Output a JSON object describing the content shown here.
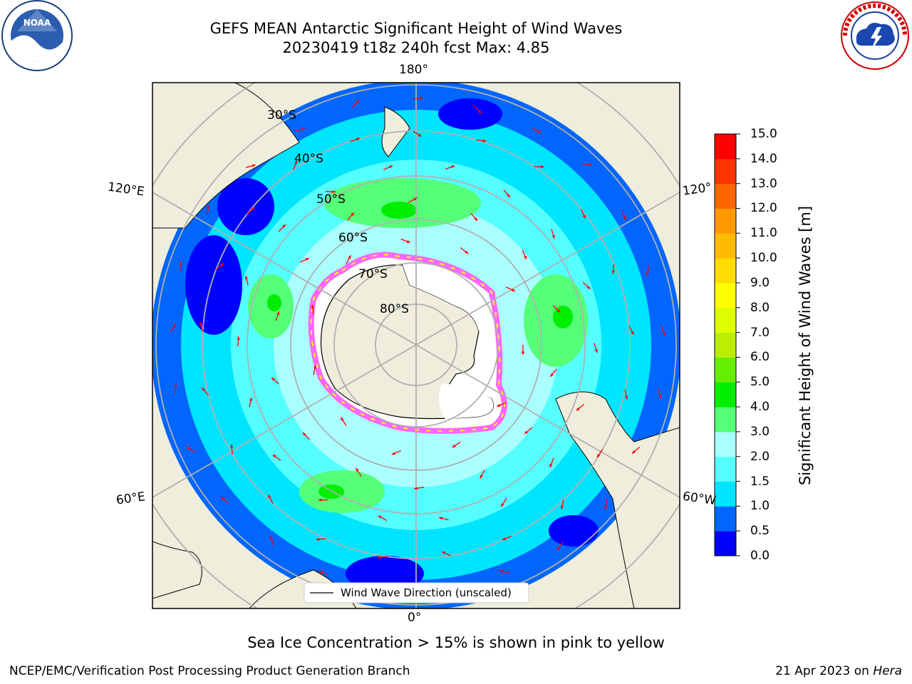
{
  "header": {
    "title_line1": "GEFS MEAN Antarctic Significant Height of Wind Waves",
    "title_line2": "20230419 t18z 240h fcst   Max: 4.85"
  },
  "map": {
    "projection": "south-polar-stereographic",
    "longitude_labels": {
      "top": "180°",
      "bottom": "0°",
      "upper_left": "120°E",
      "upper_right": "120°",
      "lower_left": "60°E",
      "lower_right": "60°W"
    },
    "latitude_labels": [
      "30°S",
      "40°S",
      "50°S",
      "60°S",
      "70°S",
      "80°S"
    ],
    "legend_label": "Wind Wave Direction (unscaled)",
    "land_color": "#efeedc",
    "arrow_color": "#ff0000",
    "sea_ice_colors": [
      "#ff66ff",
      "#ffff00"
    ]
  },
  "colorbar": {
    "label": "Significant Height of Wind Waves [m]",
    "ticks": [
      "0.0",
      "0.5",
      "1.0",
      "1.5",
      "2.0",
      "3.0",
      "4.0",
      "5.0",
      "6.0",
      "7.0",
      "8.0",
      "9.0",
      "10.0",
      "11.0",
      "12.0",
      "13.0",
      "14.0",
      "15.0"
    ],
    "colors": [
      "#0000ff",
      "#0066ff",
      "#00e5ff",
      "#55ffff",
      "#aaffff",
      "#55ff77",
      "#00ee00",
      "#66ee00",
      "#bbee00",
      "#ddff00",
      "#ffff00",
      "#ffdd00",
      "#ffbb00",
      "#ff9900",
      "#ff6600",
      "#ff3300",
      "#ff0000"
    ]
  },
  "footer": {
    "note": "Sea Ice Concentration > 15% is shown in pink to yellow",
    "left": "NCEP/EMC/Verification Post Processing Product Generation Branch",
    "right_date": "21 Apr 2023 on",
    "right_host": "Hera"
  },
  "logos": {
    "noaa_text": "NOAA",
    "nws_text": "NATIONAL WEATHER SERVICE"
  }
}
